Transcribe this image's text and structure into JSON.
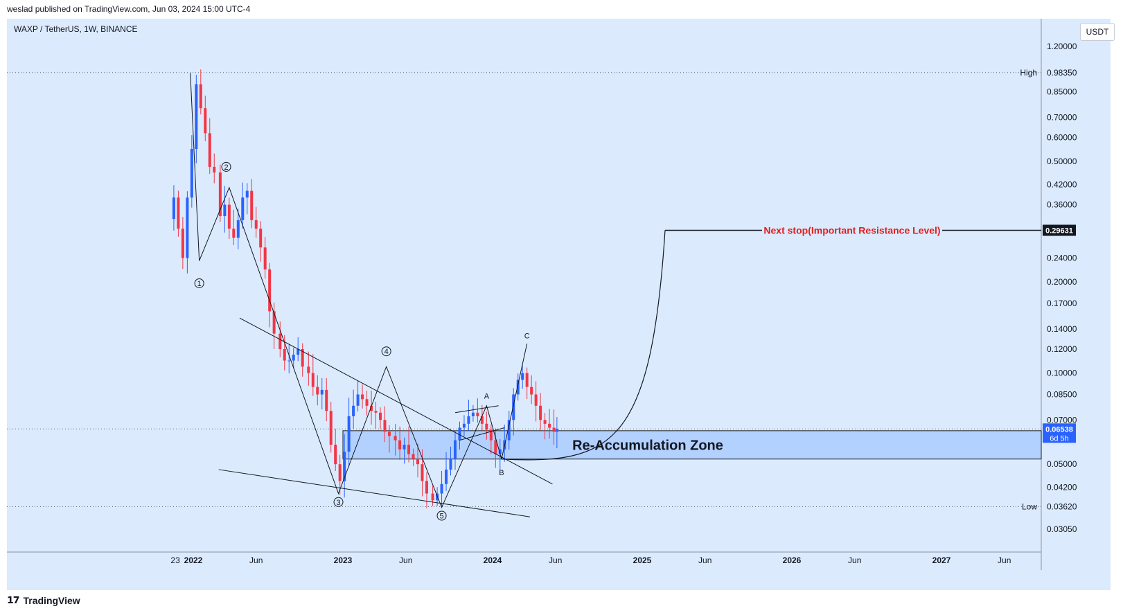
{
  "header": {
    "published": "weslad published on TradingView.com, Jun 03, 2024 15:00 UTC-4"
  },
  "symbol": {
    "title": "WAXP / TetherUS, 1W, BINANCE"
  },
  "currency": "USDT",
  "footer": {
    "brand": "TradingView",
    "logo": "TV-logo-icon"
  },
  "colors": {
    "up": "#2962ff",
    "down": "#f23645",
    "background": "#dbeafc",
    "zone": "#b3d1ff",
    "note": "#e41b1b"
  },
  "chart_data": {
    "type": "candlestick",
    "title": "WAXP / TetherUS, 1W, BINANCE",
    "y_scale": "log",
    "ylim": [
      0.025,
      1.5
    ],
    "y_ticks": [
      "1.20000",
      "0.85000",
      "0.70000",
      "0.60000",
      "0.50000",
      "0.42000",
      "0.36000",
      "0.24000",
      "0.20000",
      "0.17000",
      "0.14000",
      "0.12000",
      "0.10000",
      "0.08500",
      "0.07000",
      "0.05000",
      "0.04200",
      "0.03050"
    ],
    "y_tick_values": [
      1.2,
      0.85,
      0.7,
      0.6,
      0.5,
      0.42,
      0.36,
      0.24,
      0.2,
      0.17,
      0.14,
      0.12,
      0.1,
      0.085,
      0.07,
      0.05,
      0.042,
      0.0305
    ],
    "high": {
      "label": "High",
      "value": "0.98350",
      "v": 0.9835
    },
    "low": {
      "label": "Low",
      "value": "0.03620",
      "v": 0.0362
    },
    "current": {
      "value": "0.06538",
      "v": 0.06538,
      "countdown": "6d 5h"
    },
    "target": {
      "value": "0.29631",
      "v": 0.29631,
      "label": "Next stop(Important Resistance Level)"
    },
    "x_ticks": [
      {
        "label": "23",
        "t": 2021.88,
        "bold": false
      },
      {
        "label": "2022",
        "t": 2022.0,
        "bold": true
      },
      {
        "label": "Jun",
        "t": 2022.42,
        "bold": false
      },
      {
        "label": "2023",
        "t": 2023.0,
        "bold": true
      },
      {
        "label": "Jun",
        "t": 2023.42,
        "bold": false
      },
      {
        "label": "2024",
        "t": 2024.0,
        "bold": true
      },
      {
        "label": "Jun",
        "t": 2024.42,
        "bold": false
      },
      {
        "label": "2025",
        "t": 2025.0,
        "bold": true
      },
      {
        "label": "Jun",
        "t": 2025.42,
        "bold": false
      },
      {
        "label": "2026",
        "t": 2026.0,
        "bold": true
      },
      {
        "label": "Jun",
        "t": 2026.42,
        "bold": false
      },
      {
        "label": "2027",
        "t": 2027.0,
        "bold": true
      },
      {
        "label": "Jun",
        "t": 2027.42,
        "bold": false
      }
    ],
    "zone": {
      "label": "Re-Accumulation Zone",
      "top": 0.0645,
      "bottom": 0.052,
      "t_start": 2023.0
    },
    "price_path": [
      [
        2021.87,
        0.38
      ],
      [
        2021.9,
        0.3
      ],
      [
        2021.93,
        0.24
      ],
      [
        2021.96,
        0.38
      ],
      [
        2021.99,
        0.55
      ],
      [
        2022.02,
        0.9
      ],
      [
        2022.05,
        0.75
      ],
      [
        2022.08,
        0.62
      ],
      [
        2022.11,
        0.48
      ],
      [
        2022.14,
        0.46
      ],
      [
        2022.18,
        0.33
      ],
      [
        2022.21,
        0.36
      ],
      [
        2022.24,
        0.3
      ],
      [
        2022.27,
        0.28
      ],
      [
        2022.3,
        0.32
      ],
      [
        2022.33,
        0.38
      ],
      [
        2022.36,
        0.4
      ],
      [
        2022.39,
        0.32
      ],
      [
        2022.42,
        0.3
      ],
      [
        2022.45,
        0.26
      ],
      [
        2022.48,
        0.22
      ],
      [
        2022.51,
        0.16
      ],
      [
        2022.54,
        0.135
      ],
      [
        2022.58,
        0.12
      ],
      [
        2022.61,
        0.11
      ],
      [
        2022.64,
        0.11
      ],
      [
        2022.67,
        0.115
      ],
      [
        2022.7,
        0.12
      ],
      [
        2022.73,
        0.105
      ],
      [
        2022.77,
        0.1
      ],
      [
        2022.8,
        0.09
      ],
      [
        2022.83,
        0.085
      ],
      [
        2022.86,
        0.088
      ],
      [
        2022.89,
        0.075
      ],
      [
        2022.92,
        0.058
      ],
      [
        2022.95,
        0.05
      ],
      [
        2022.98,
        0.044
      ],
      [
        2023.01,
        0.055
      ],
      [
        2023.04,
        0.072
      ],
      [
        2023.07,
        0.078
      ],
      [
        2023.1,
        0.085
      ],
      [
        2023.13,
        0.082
      ],
      [
        2023.16,
        0.078
      ],
      [
        2023.19,
        0.075
      ],
      [
        2023.22,
        0.074
      ],
      [
        2023.25,
        0.07
      ],
      [
        2023.28,
        0.064
      ],
      [
        2023.31,
        0.062
      ],
      [
        2023.35,
        0.06
      ],
      [
        2023.38,
        0.056
      ],
      [
        2023.41,
        0.058
      ],
      [
        2023.44,
        0.054
      ],
      [
        2023.47,
        0.052
      ],
      [
        2023.5,
        0.05
      ],
      [
        2023.53,
        0.044
      ],
      [
        2023.56,
        0.04
      ],
      [
        2023.6,
        0.038
      ],
      [
        2023.63,
        0.04
      ],
      [
        2023.66,
        0.043
      ],
      [
        2023.69,
        0.048
      ],
      [
        2023.72,
        0.052
      ],
      [
        2023.75,
        0.06
      ],
      [
        2023.78,
        0.066
      ],
      [
        2023.81,
        0.068
      ],
      [
        2023.84,
        0.072
      ],
      [
        2023.87,
        0.074
      ],
      [
        2023.9,
        0.072
      ],
      [
        2023.93,
        0.068
      ],
      [
        2023.96,
        0.065
      ],
      [
        2023.99,
        0.06
      ],
      [
        2024.02,
        0.054
      ],
      [
        2024.05,
        0.056
      ],
      [
        2024.08,
        0.06
      ],
      [
        2024.11,
        0.07
      ],
      [
        2024.14,
        0.085
      ],
      [
        2024.17,
        0.095
      ],
      [
        2024.2,
        0.1
      ],
      [
        2024.23,
        0.09
      ],
      [
        2024.26,
        0.085
      ],
      [
        2024.29,
        0.078
      ],
      [
        2024.32,
        0.07
      ],
      [
        2024.35,
        0.068
      ],
      [
        2024.38,
        0.066
      ],
      [
        2024.41,
        0.064
      ],
      [
        2024.43,
        0.06538
      ]
    ],
    "wave_labels": [
      {
        "label": "1",
        "t": 2022.04,
        "v": 0.198,
        "circled": true
      },
      {
        "label": "2",
        "t": 2022.22,
        "v": 0.48,
        "circled": true
      },
      {
        "label": "3",
        "t": 2022.97,
        "v": 0.0375,
        "circled": true
      },
      {
        "label": "4",
        "t": 2023.29,
        "v": 0.118,
        "circled": true
      },
      {
        "label": "5",
        "t": 2023.66,
        "v": 0.0338,
        "circled": true
      },
      {
        "label": "A",
        "t": 2023.96,
        "v": 0.084,
        "circled": false
      },
      {
        "label": "B",
        "t": 2024.06,
        "v": 0.047,
        "circled": false
      },
      {
        "label": "C",
        "t": 2024.23,
        "v": 0.133,
        "circled": false
      }
    ]
  }
}
